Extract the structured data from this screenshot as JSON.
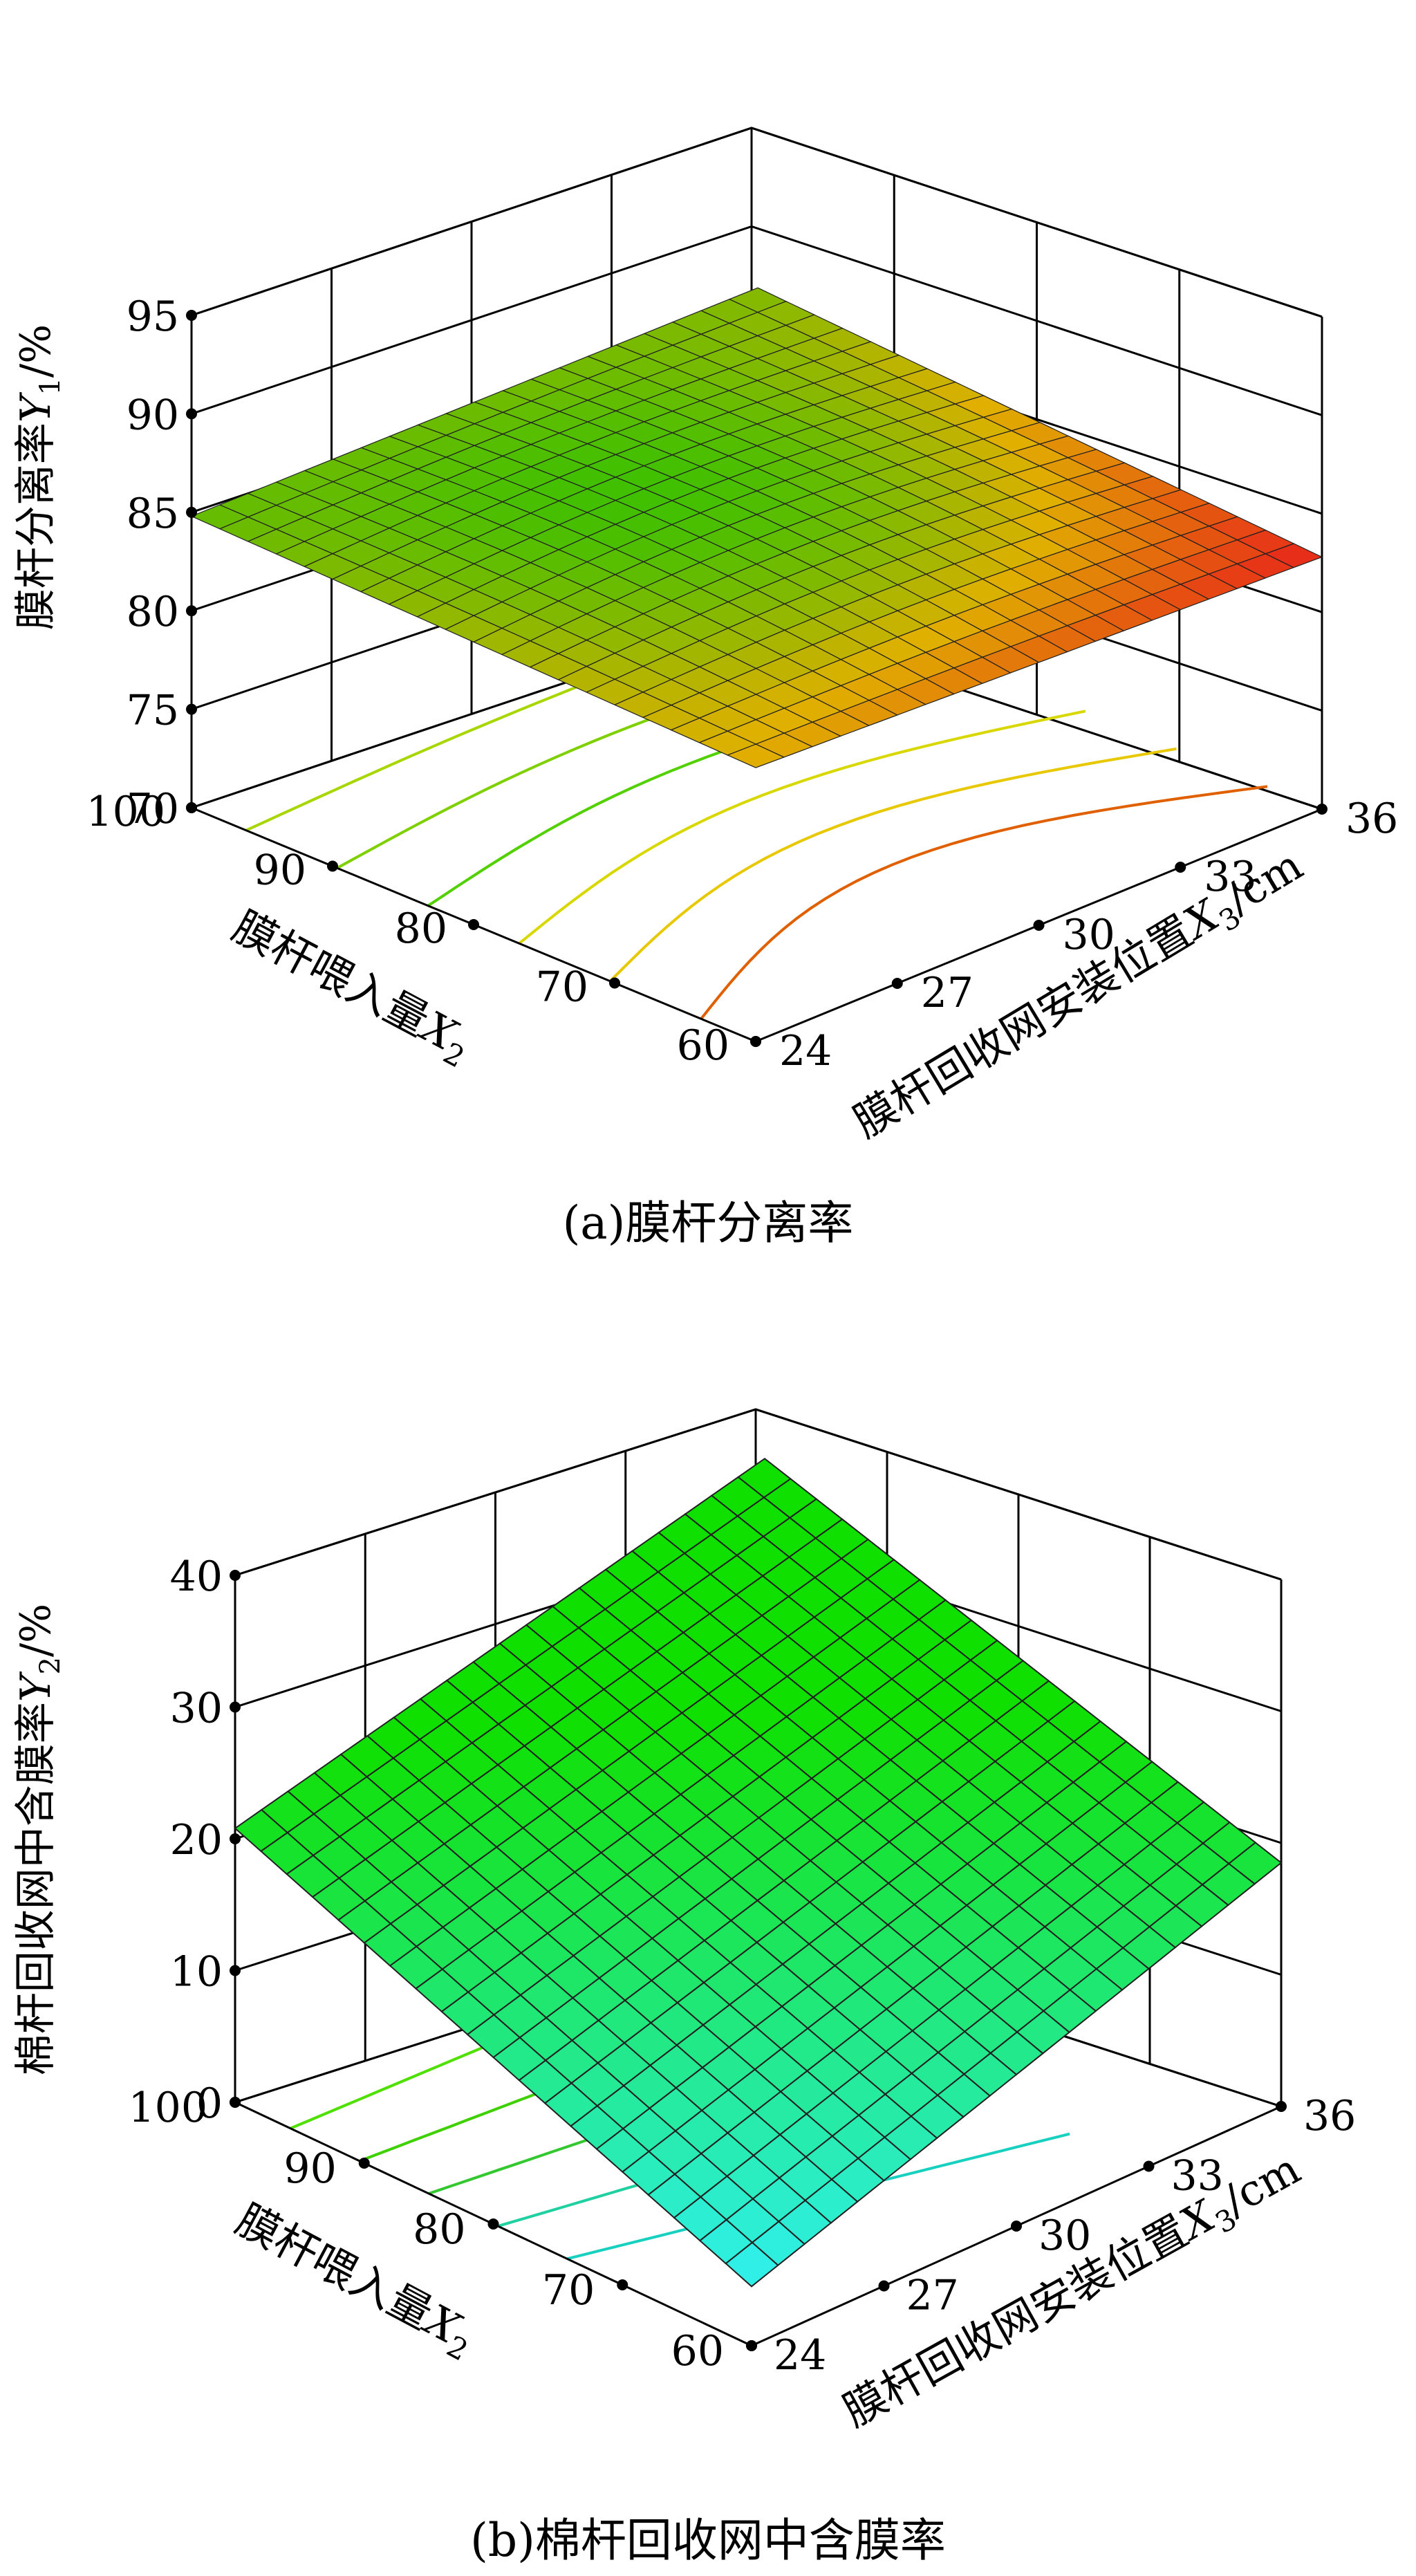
{
  "figure": {
    "caption_a": "(a)膜杆分离率",
    "caption_b": "(b)棉杆回收网中含膜率"
  },
  "chart_data": [
    {
      "type": "surface3d",
      "panel": "a",
      "zlabel_main": "膜杆分离率",
      "zlabel_sym": "Y",
      "zlabel_sub": "1",
      "zlabel_unit": "/%",
      "zticks": [
        "70",
        "75",
        "80",
        "85",
        "90",
        "95"
      ],
      "zlim": [
        70,
        95
      ],
      "x2label_main": "膜杆喂入量",
      "x2label_sym": "X",
      "x2label_sub": "2",
      "x2ticks": [
        "100",
        "90",
        "80",
        "70",
        "60"
      ],
      "x2lim": [
        60,
        100
      ],
      "x3label_main": "膜杆回收网安装位置",
      "x3label_sym": "X",
      "x3label_sub": "3",
      "x3label_unit": "/cm",
      "x3ticks": [
        "24",
        "27",
        "30",
        "33",
        "36"
      ],
      "x3lim": [
        24,
        36
      ],
      "surface_corners": {
        "x2_60_x3_24": 83.9,
        "x2_100_x3_24": 84.8,
        "x2_100_x3_36": 84.6,
        "x2_60_x3_36": 82.8
      },
      "contour_colors": [
        "#a8d600",
        "#7fd000",
        "#52d000",
        "#d8d800",
        "#e8c800",
        "#e06000"
      ],
      "grid": true
    },
    {
      "type": "surface3d",
      "panel": "b",
      "zlabel_main": "棉杆回收网中含膜率",
      "zlabel_sym": "Y",
      "zlabel_sub": "2",
      "zlabel_unit": "/%",
      "zticks": [
        "0",
        "10",
        "20",
        "30",
        "40"
      ],
      "zlim": [
        0,
        40
      ],
      "x2label_main": "膜杆喂入量",
      "x2label_sym": "X",
      "x2label_sub": "2",
      "x2ticks": [
        "100",
        "90",
        "80",
        "70",
        "60"
      ],
      "x2lim": [
        60,
        100
      ],
      "x3label_main": "膜杆回收网安装位置",
      "x3label_sym": "X",
      "x3label_sub": "3",
      "x3label_unit": "/cm",
      "x3ticks": [
        "24",
        "27",
        "30",
        "33",
        "36"
      ],
      "x3lim": [
        24,
        36
      ],
      "surface_corners": {
        "x2_60_x3_24": 4.5,
        "x2_100_x3_24": 20.8,
        "x2_100_x3_36": 30.7,
        "x2_60_x3_36": 18.5
      },
      "contour_colors": [
        "#4fe000",
        "#3fd000",
        "#34c830",
        "#20d0a0",
        "#18d0c0"
      ],
      "grid": true
    }
  ]
}
